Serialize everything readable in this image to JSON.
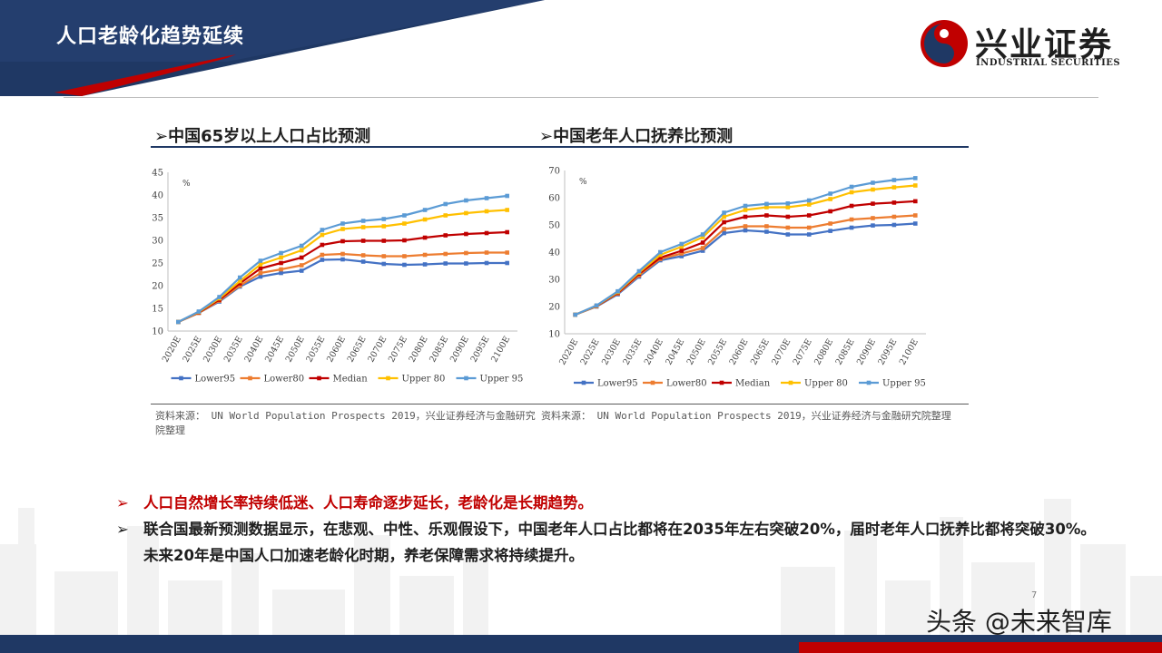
{
  "header": {
    "title": "人口老龄化趋势延续"
  },
  "logo": {
    "name": "兴业证券",
    "subtitle": "INDUSTRIAL SECURITIES"
  },
  "charts": [
    {
      "title": "中国65岁以上人口占比预测",
      "source": "资料来源： UN World Population Prospects 2019，兴业证券经济与金融研究院整理"
    },
    {
      "title": "中国老年人口抚养比预测",
      "source": "资料来源： UN World Population Prospects 2019，兴业证券经济与金融研究院整理"
    }
  ],
  "bullets": [
    {
      "marker": "➢",
      "text": "人口自然增长率持续低迷、人口寿命逐步延长，老龄化是长期趋势。"
    },
    {
      "marker": "➢",
      "text": "联合国最新预测数据显示，在悲观、中性、乐观假设下，中国老年人口占比都将在2035年左右突破20%，届时老年人口抚养比都将突破30%。未来20年是中国人口加速老龄化时期，养老保障需求将持续提升。"
    }
  ],
  "watermark": "头条 @未来智库",
  "page_number": "7",
  "colors": {
    "banner": "#1f3864",
    "accent_red": "#c00000",
    "lower95": "#4472c4",
    "lower80": "#ed7d31",
    "median": "#c00000",
    "upper80": "#ffc000",
    "upper95": "#5b9bd5"
  },
  "chart_data": [
    {
      "type": "line",
      "title": "中国65岁以上人口占比预测",
      "ylabel": "%",
      "ylim": [
        10,
        45
      ],
      "yticks": [
        10,
        15,
        20,
        25,
        30,
        35,
        40,
        45
      ],
      "categories": [
        "2020E",
        "2025E",
        "2030E",
        "2035E",
        "2040E",
        "2045E",
        "2050E",
        "2055E",
        "2060E",
        "2065E",
        "2070E",
        "2075E",
        "2080E",
        "2085E",
        "2090E",
        "2095E",
        "2100E"
      ],
      "legend": "bottom",
      "grid": false,
      "series": [
        {
          "name": "Lower95",
          "color": "#4472c4",
          "values": [
            12.0,
            14.0,
            16.5,
            19.8,
            22.0,
            22.8,
            23.3,
            25.7,
            25.8,
            25.3,
            24.8,
            24.6,
            24.7,
            24.9,
            24.9,
            25.0,
            25.0
          ]
        },
        {
          "name": "Lower80",
          "color": "#ed7d31",
          "values": [
            12.0,
            14.0,
            16.7,
            20.0,
            22.8,
            23.6,
            24.5,
            26.8,
            27.0,
            26.7,
            26.5,
            26.5,
            26.8,
            27.0,
            27.2,
            27.3,
            27.3
          ]
        },
        {
          "name": "Median",
          "color": "#c00000",
          "values": [
            12.0,
            14.1,
            16.9,
            20.5,
            23.8,
            25.0,
            26.2,
            29.0,
            29.8,
            29.9,
            29.9,
            30.0,
            30.6,
            31.1,
            31.4,
            31.6,
            31.8
          ]
        },
        {
          "name": "Upper 80",
          "color": "#ffc000",
          "values": [
            12.0,
            14.2,
            17.2,
            21.0,
            24.7,
            26.2,
            27.8,
            31.2,
            32.5,
            32.9,
            33.1,
            33.7,
            34.6,
            35.5,
            36.0,
            36.4,
            36.7
          ]
        },
        {
          "name": "Upper 95",
          "color": "#5b9bd5",
          "values": [
            12.0,
            14.3,
            17.5,
            21.8,
            25.5,
            27.2,
            28.8,
            32.3,
            33.7,
            34.3,
            34.7,
            35.5,
            36.7,
            38.0,
            38.8,
            39.3,
            39.8
          ]
        }
      ]
    },
    {
      "type": "line",
      "title": "中国老年人口抚养比预测",
      "ylabel": "%",
      "ylim": [
        10,
        70
      ],
      "yticks": [
        10,
        20,
        30,
        40,
        50,
        60,
        70
      ],
      "categories": [
        "2020E",
        "2025E",
        "2030E",
        "2035E",
        "2040E",
        "2045E",
        "2050E",
        "2055E",
        "2060E",
        "2065E",
        "2070E",
        "2075E",
        "2080E",
        "2085E",
        "2090E",
        "2095E",
        "2100E"
      ],
      "legend": "bottom",
      "grid": false,
      "series": [
        {
          "name": "Lower95",
          "color": "#4472c4",
          "values": [
            17.0,
            20.0,
            24.5,
            31.0,
            37.0,
            38.5,
            40.5,
            47.0,
            48.0,
            47.5,
            46.5,
            46.5,
            47.8,
            49.0,
            49.8,
            50.0,
            50.5
          ]
        },
        {
          "name": "Lower80",
          "color": "#ed7d31",
          "values": [
            17.0,
            20.1,
            24.8,
            31.5,
            37.5,
            39.5,
            41.5,
            48.5,
            49.5,
            49.5,
            49.0,
            49.0,
            50.5,
            52.0,
            52.5,
            53.0,
            53.5
          ]
        },
        {
          "name": "Median",
          "color": "#c00000",
          "values": [
            17.0,
            20.2,
            25.0,
            32.0,
            38.0,
            40.5,
            43.5,
            51.0,
            53.0,
            53.5,
            53.0,
            53.5,
            55.0,
            57.0,
            57.8,
            58.2,
            58.7
          ]
        },
        {
          "name": "Upper 80",
          "color": "#ffc000",
          "values": [
            17.0,
            20.3,
            25.3,
            32.5,
            39.0,
            42.0,
            45.5,
            53.0,
            55.5,
            56.5,
            56.5,
            57.5,
            59.5,
            62.0,
            63.0,
            63.8,
            64.5
          ]
        },
        {
          "name": "Upper 95",
          "color": "#5b9bd5",
          "values": [
            17.0,
            20.4,
            25.6,
            33.0,
            40.0,
            43.0,
            46.5,
            54.5,
            57.0,
            57.7,
            57.9,
            59.0,
            61.5,
            64.0,
            65.5,
            66.5,
            67.2
          ]
        }
      ]
    }
  ]
}
